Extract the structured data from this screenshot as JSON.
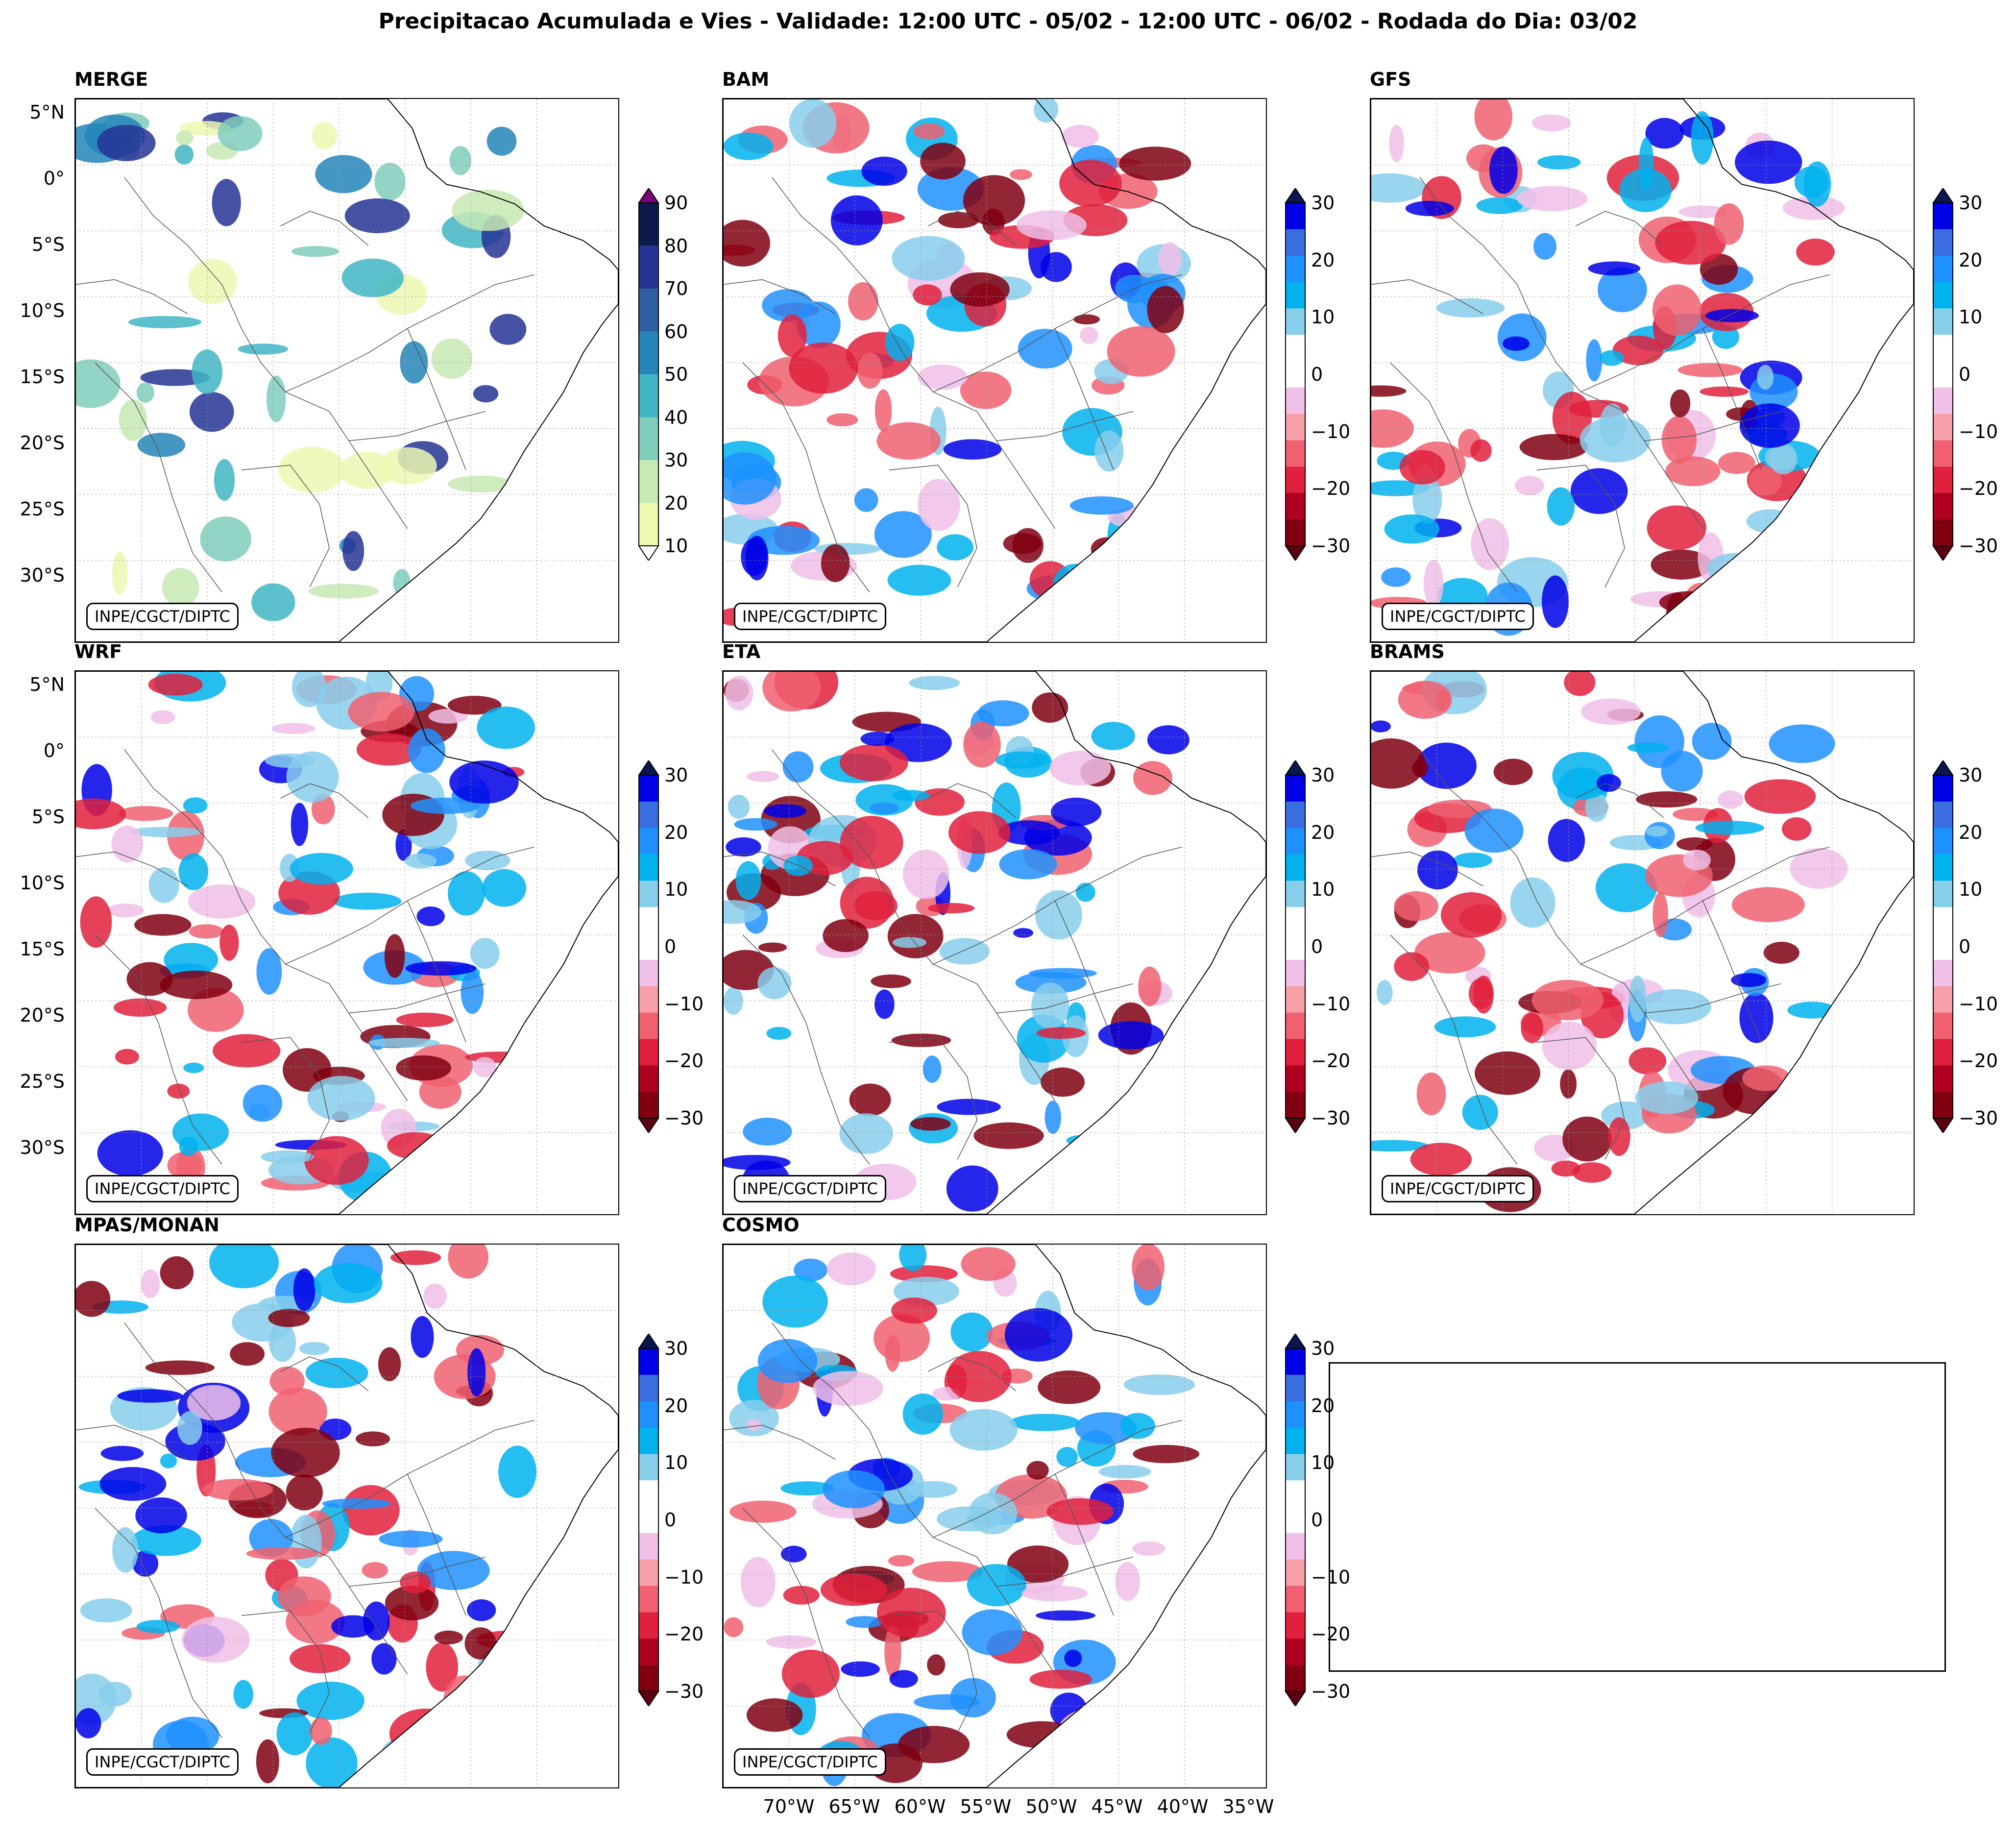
{
  "title": "Precipitacao Acumulada e Vies - Validade: 12:00 UTC - 05/02 - 12:00 UTC - 06/02 - Rodada do Dia: 03/02",
  "credit": "INPE/CGCT/DIPTC",
  "lat_labels": [
    "5°N",
    "0°",
    "5°S",
    "10°S",
    "15°S",
    "20°S",
    "25°S",
    "30°S"
  ],
  "lon_labels": [
    "70°W",
    "65°W",
    "60°W",
    "55°W",
    "50°W",
    "45°W",
    "40°W",
    "35°W"
  ],
  "precip_scale": {
    "ticks": [
      "90",
      "80",
      "70",
      "60",
      "50",
      "40",
      "30",
      "20",
      "10"
    ],
    "colors": [
      "#0c1b4e",
      "#253494",
      "#2c5ea0",
      "#2585b8",
      "#41b6c4",
      "#7fcdbb",
      "#c7e9b4",
      "#edf8b1"
    ],
    "over_color": "#7a0177",
    "under_color": "#ffffff"
  },
  "bias_scale": {
    "ticks": [
      "30",
      "20",
      "10",
      "0",
      "−10",
      "−20",
      "−30"
    ],
    "colors": [
      "#0000e6",
      "#3a6ee0",
      "#1e90ff",
      "#00b2ee",
      "#87ceeb",
      "#ffffff",
      "#ffffff",
      "#f0c0e8",
      "#f8a0a8",
      "#f06070",
      "#e0203c",
      "#b00020",
      "#800010"
    ],
    "over_color": "#0a1650",
    "under_color": "#5a0010"
  },
  "panels": [
    {
      "name": "MERGE",
      "type": "precip"
    },
    {
      "name": "BAM",
      "type": "bias"
    },
    {
      "name": "GFS",
      "type": "bias"
    },
    {
      "name": "WRF",
      "type": "bias"
    },
    {
      "name": "ETA",
      "type": "bias"
    },
    {
      "name": "BRAMS",
      "type": "bias"
    },
    {
      "name": "MPAS/MONAN",
      "type": "bias"
    },
    {
      "name": "COSMO",
      "type": "bias"
    }
  ]
}
